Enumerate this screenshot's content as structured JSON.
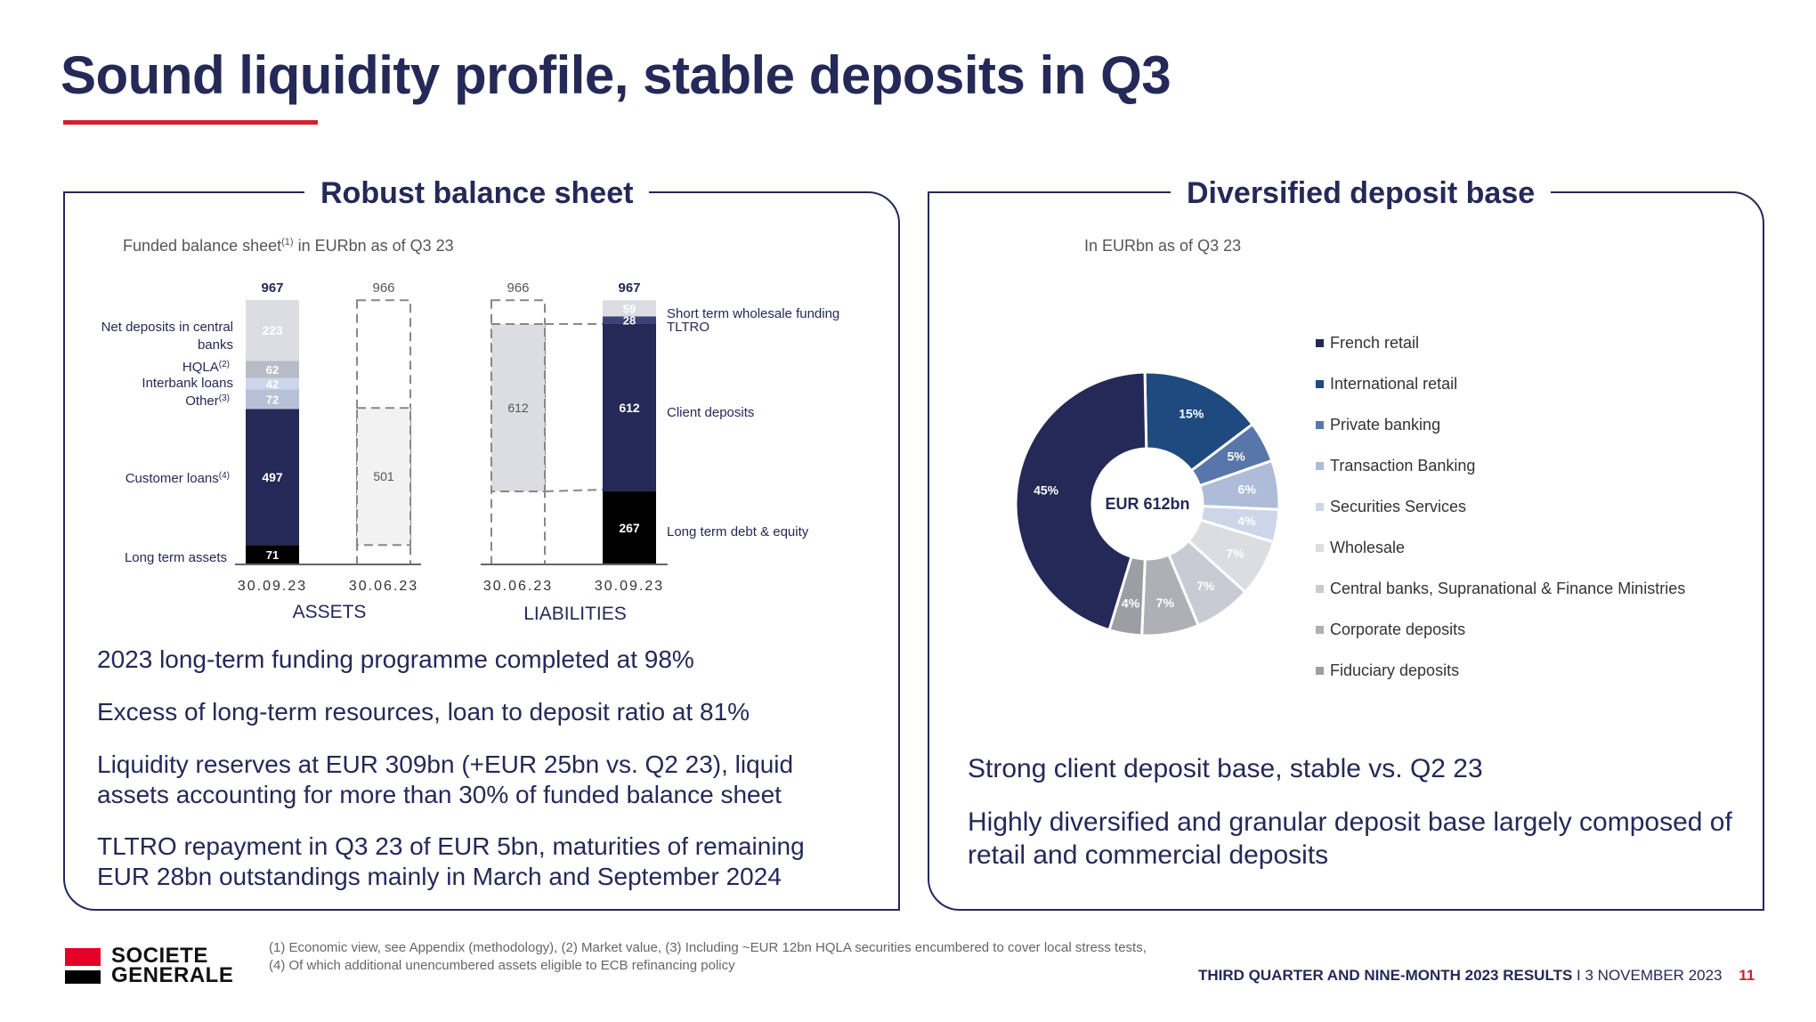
{
  "slide": {
    "title": "Sound liquidity profile, stable deposits in Q3"
  },
  "left_panel": {
    "title": "Robust balance sheet",
    "subtitle_prefix": "Funded balance sheet",
    "subtitle_sup": "(1)",
    "subtitle_suffix": " in EURbn as of Q3 23",
    "bullets": [
      "2023 long-term funding programme completed at 98%",
      "Excess of long-term resources, loan to deposit ratio at 81%",
      "Liquidity reserves at EUR 309bn (+EUR 25bn vs. Q2 23), liquid assets accounting for more than 30% of funded balance sheet",
      "TLTRO repayment in Q3 23 of EUR 5bn, maturities of remaining EUR 28bn outstandings mainly in March and September 2024"
    ]
  },
  "right_panel": {
    "title": "Diversified deposit base",
    "subtitle": "In EURbn as of Q3 23",
    "bullets": [
      "Strong client deposit base, stable vs. Q2 23",
      "Highly diversified and granular deposit base largely composed of retail and commercial deposits"
    ]
  },
  "chart_data": [
    {
      "type": "bar",
      "stacked": true,
      "group_labels": [
        "ASSETS",
        "LIABILITIES"
      ],
      "categories": [
        "30.09.23",
        "30.06.23",
        "30.06.23",
        "30.09.23"
      ],
      "totals": [
        967,
        966,
        966,
        967
      ],
      "asset_labels": [
        {
          "text": "Net deposits in central",
          "text2": "banks",
          "sup": ""
        },
        {
          "text": "HQLA",
          "sup": "(2)"
        },
        {
          "text": "Interbank loans",
          "sup": ""
        },
        {
          "text": "Other",
          "sup": "(3)"
        },
        {
          "text": "Customer loans",
          "sup": "(4)"
        },
        {
          "text": "Long term assets",
          "sup": ""
        }
      ],
      "assets_30_09_23": {
        "long_term_assets": 71,
        "customer_loans": 497,
        "other": 72,
        "interbank_loans": 42,
        "hqla": 62,
        "net_deposits_central_banks": 223
      },
      "assets_30_06_23": {
        "customer_loans": 501
      },
      "liabilities_30_06_23": {
        "client_deposits": 612
      },
      "liabilities_30_09_23": {
        "long_term_debt_equity": 267,
        "client_deposits": 612,
        "tltro": 28,
        "short_term_wholesale_funding": 59
      },
      "liability_labels": [
        "Short term wholesale funding",
        "TLTRO",
        "Client deposits",
        "Long term debt & equity"
      ],
      "value_labels": {
        "a1": [
          "71",
          "497",
          "72",
          "42",
          "62",
          "223"
        ],
        "a2": [
          "501"
        ],
        "l1": [
          "612"
        ],
        "l2": [
          "267",
          "612",
          "28",
          "59"
        ]
      },
      "colors": {
        "navy": "#242957",
        "black": "#000000",
        "light_grey": "#dcdde2",
        "grey_blue": "#b6c0d6",
        "mid": "#c7ccd8",
        "pale": "#f2f2f2"
      }
    },
    {
      "type": "pie",
      "donut": true,
      "center_label": "EUR 612bn",
      "slices": [
        {
          "name": "French retail",
          "value": 45,
          "label": "45%",
          "color": "#242957"
        },
        {
          "name": "International  retail",
          "value": 15,
          "label": "15%",
          "color": "#1f4a80"
        },
        {
          "name": "Private banking",
          "value": 5,
          "label": "5%",
          "color": "#5876a9"
        },
        {
          "name": "Transaction Banking",
          "value": 6,
          "label": "6%",
          "color": "#aebcda"
        },
        {
          "name": "Securities Services",
          "value": 4,
          "label": "4%",
          "color": "#cdd6e9"
        },
        {
          "name": "Wholesale",
          "value": 7,
          "label": "7%",
          "color": "#dcdde3"
        },
        {
          "name": "Central banks, Supranational & Finance Ministries",
          "value": 7,
          "label": "7%",
          "color": "#c8cbd3"
        },
        {
          "name": "Corporate deposits",
          "value": 7,
          "label": "7%",
          "color": "#aeb0b6"
        },
        {
          "name": "Fiduciary deposits",
          "value": 4,
          "label": "4%",
          "color": "#9c9ea4"
        }
      ],
      "legend_position": "right"
    }
  ],
  "footer": {
    "logo_line1": "SOCIETE",
    "logo_line2": "GENERALE",
    "footnote1": "(1) Economic view, see Appendix (methodology), (2) Market value, (3) Including ~EUR 12bn HQLA securities encumbered to cover local stress tests,",
    "footnote2": "(4) Of which additional unencumbered assets eligible to ECB refinancing policy",
    "results_label": "THIRD QUARTER AND NINE-MONTH 2023 RESULTS",
    "separator": " I ",
    "date": "3 NOVEMBER 2023",
    "page_number": "11"
  },
  "colors": {
    "brand_navy": "#242957",
    "brand_red": "#d4202c"
  }
}
